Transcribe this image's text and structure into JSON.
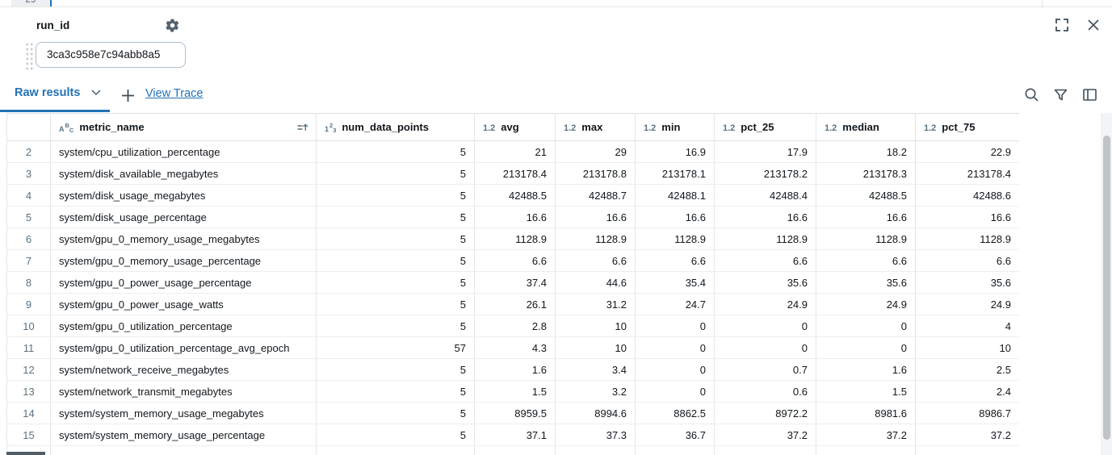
{
  "editor_above": {
    "visible_line_number": "29"
  },
  "panel": {
    "widget": {
      "label": "run_id",
      "value": "3ca3c958e7c94abb8a5"
    },
    "toolbar": {
      "active_tab": "Raw results",
      "view_trace_link": "View Trace"
    }
  },
  "colors": {
    "accent_blue": "#2272B4",
    "slate_icon": "#5B7282",
    "text_dark": "#11171C"
  },
  "icons": [
    "gear-icon",
    "expand-icon",
    "close-icon",
    "chevron-down-icon",
    "plus-icon",
    "search-icon",
    "filter-icon",
    "columns-icon",
    "sort-ascending-icon",
    "string-type-icon",
    "integer-type-icon",
    "decimal-type-icon",
    "drag-handle"
  ],
  "table": {
    "partial_next_row": true,
    "columns": [
      {
        "key": "metric_name",
        "label": "metric_name",
        "type": "string",
        "icon": {
          "main": "A",
          "sup": "B",
          "sub": "C"
        },
        "sorted": true
      },
      {
        "key": "num_data_points",
        "label": "num_data_points",
        "type": "int",
        "icon": {
          "main": "1",
          "sup": "2",
          "sub": "3"
        }
      },
      {
        "key": "avg",
        "label": "avg",
        "type": "decimal",
        "icon": {
          "text": "1.2"
        }
      },
      {
        "key": "max",
        "label": "max",
        "type": "decimal",
        "icon": {
          "text": "1.2"
        }
      },
      {
        "key": "min",
        "label": "min",
        "type": "decimal",
        "icon": {
          "text": "1.2"
        }
      },
      {
        "key": "pct_25",
        "label": "pct_25",
        "type": "decimal",
        "icon": {
          "text": "1.2"
        }
      },
      {
        "key": "median",
        "label": "median",
        "type": "decimal",
        "icon": {
          "text": "1.2"
        }
      },
      {
        "key": "pct_75",
        "label": "pct_75",
        "type": "decimal",
        "icon": {
          "text": "1.2"
        }
      }
    ],
    "rows": [
      {
        "n": "2",
        "cells": {
          "metric_name": "system/cpu_utilization_percentage",
          "num_data_points": "5",
          "avg": "21",
          "max": "29",
          "min": "16.9",
          "pct_25": "17.9",
          "median": "18.2",
          "pct_75": "22.9"
        }
      },
      {
        "n": "3",
        "cells": {
          "metric_name": "system/disk_available_megabytes",
          "num_data_points": "5",
          "avg": "213178.4",
          "max": "213178.8",
          "min": "213178.1",
          "pct_25": "213178.2",
          "median": "213178.3",
          "pct_75": "213178.4"
        }
      },
      {
        "n": "4",
        "cells": {
          "metric_name": "system/disk_usage_megabytes",
          "num_data_points": "5",
          "avg": "42488.5",
          "max": "42488.7",
          "min": "42488.1",
          "pct_25": "42488.4",
          "median": "42488.5",
          "pct_75": "42488.6"
        }
      },
      {
        "n": "5",
        "cells": {
          "metric_name": "system/disk_usage_percentage",
          "num_data_points": "5",
          "avg": "16.6",
          "max": "16.6",
          "min": "16.6",
          "pct_25": "16.6",
          "median": "16.6",
          "pct_75": "16.6"
        }
      },
      {
        "n": "6",
        "cells": {
          "metric_name": "system/gpu_0_memory_usage_megabytes",
          "num_data_points": "5",
          "avg": "1128.9",
          "max": "1128.9",
          "min": "1128.9",
          "pct_25": "1128.9",
          "median": "1128.9",
          "pct_75": "1128.9"
        }
      },
      {
        "n": "7",
        "cells": {
          "metric_name": "system/gpu_0_memory_usage_percentage",
          "num_data_points": "5",
          "avg": "6.6",
          "max": "6.6",
          "min": "6.6",
          "pct_25": "6.6",
          "median": "6.6",
          "pct_75": "6.6"
        }
      },
      {
        "n": "8",
        "cells": {
          "metric_name": "system/gpu_0_power_usage_percentage",
          "num_data_points": "5",
          "avg": "37.4",
          "max": "44.6",
          "min": "35.4",
          "pct_25": "35.6",
          "median": "35.6",
          "pct_75": "35.6"
        }
      },
      {
        "n": "9",
        "cells": {
          "metric_name": "system/gpu_0_power_usage_watts",
          "num_data_points": "5",
          "avg": "26.1",
          "max": "31.2",
          "min": "24.7",
          "pct_25": "24.9",
          "median": "24.9",
          "pct_75": "24.9"
        }
      },
      {
        "n": "10",
        "cells": {
          "metric_name": "system/gpu_0_utilization_percentage",
          "num_data_points": "5",
          "avg": "2.8",
          "max": "10",
          "min": "0",
          "pct_25": "0",
          "median": "0",
          "pct_75": "4"
        }
      },
      {
        "n": "11",
        "cells": {
          "metric_name": "system/gpu_0_utilization_percentage_avg_epoch",
          "num_data_points": "57",
          "avg": "4.3",
          "max": "10",
          "min": "0",
          "pct_25": "0",
          "median": "0",
          "pct_75": "10"
        }
      },
      {
        "n": "12",
        "cells": {
          "metric_name": "system/network_receive_megabytes",
          "num_data_points": "5",
          "avg": "1.6",
          "max": "3.4",
          "min": "0",
          "pct_25": "0.7",
          "median": "1.6",
          "pct_75": "2.5"
        }
      },
      {
        "n": "13",
        "cells": {
          "metric_name": "system/network_transmit_megabytes",
          "num_data_points": "5",
          "avg": "1.5",
          "max": "3.2",
          "min": "0",
          "pct_25": "0.6",
          "median": "1.5",
          "pct_75": "2.4"
        }
      },
      {
        "n": "14",
        "cells": {
          "metric_name": "system/system_memory_usage_megabytes",
          "num_data_points": "5",
          "avg": "8959.5",
          "max": "8994.6",
          "min": "8862.5",
          "pct_25": "8972.2",
          "median": "8981.6",
          "pct_75": "8986.7"
        }
      },
      {
        "n": "15",
        "cells": {
          "metric_name": "system/system_memory_usage_percentage",
          "num_data_points": "5",
          "avg": "37.1",
          "max": "37.3",
          "min": "36.7",
          "pct_25": "37.2",
          "median": "37.2",
          "pct_75": "37.2"
        }
      }
    ]
  }
}
